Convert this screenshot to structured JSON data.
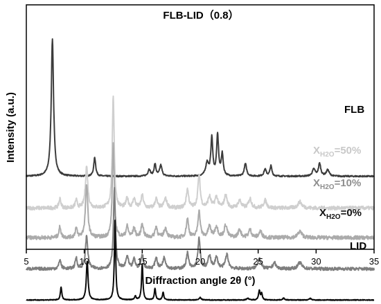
{
  "chart_data": {
    "type": "line",
    "title": "FLB-LID（0.8）",
    "xlabel": "Diffraction angle 2θ (°)",
    "ylabel": "Intensity (a.u.)",
    "xlim": [
      5,
      35
    ],
    "xticks": [
      5,
      10,
      15,
      20,
      25,
      30,
      35
    ],
    "yticks_visible": false,
    "grid": false,
    "legend": "inline labels at right",
    "series": [
      {
        "name": "FLB",
        "label_parts": [
          "FLB",
          "",
          ""
        ],
        "color": "#3c3c3c",
        "baseline": 0.92,
        "noise": 0.022,
        "peaks": [
          [
            7.25,
            4.4,
            0.12
          ],
          [
            10.9,
            0.6,
            0.1
          ],
          [
            15.6,
            0.22,
            0.12
          ],
          [
            16.1,
            0.38,
            0.1
          ],
          [
            16.6,
            0.35,
            0.12
          ],
          [
            20.6,
            0.42,
            0.15
          ],
          [
            21.0,
            1.2,
            0.1
          ],
          [
            21.5,
            1.3,
            0.1
          ],
          [
            21.9,
            0.7,
            0.1
          ],
          [
            23.9,
            0.4,
            0.12
          ],
          [
            25.6,
            0.22,
            0.12
          ],
          [
            26.1,
            0.33,
            0.1
          ],
          [
            29.8,
            0.22,
            0.15
          ],
          [
            30.3,
            0.4,
            0.12
          ],
          [
            31.0,
            0.2,
            0.15
          ]
        ]
      },
      {
        "name": "XH2O=50%",
        "label_parts": [
          "X",
          "H2O",
          "=50%"
        ],
        "color": "#cfcfcf",
        "baseline": -0.1,
        "noise": 0.06,
        "peaks": [
          [
            7.9,
            0.3,
            0.1
          ],
          [
            9.3,
            0.25,
            0.1
          ],
          [
            10.2,
            1.35,
            0.12
          ],
          [
            12.5,
            3.6,
            0.1
          ],
          [
            13.7,
            0.3,
            0.12
          ],
          [
            14.3,
            0.3,
            0.12
          ],
          [
            15.0,
            0.4,
            0.12
          ],
          [
            16.2,
            0.3,
            0.12
          ],
          [
            17.0,
            0.3,
            0.15
          ],
          [
            18.9,
            0.6,
            0.12
          ],
          [
            19.9,
            1.05,
            0.12
          ],
          [
            20.8,
            0.35,
            0.15
          ],
          [
            21.4,
            0.35,
            0.15
          ],
          [
            22.2,
            0.4,
            0.15
          ],
          [
            23.4,
            0.25,
            0.15
          ],
          [
            24.3,
            0.3,
            0.15
          ],
          [
            25.6,
            0.25,
            0.15
          ],
          [
            28.6,
            0.2,
            0.2
          ]
        ]
      },
      {
        "name": "XH2O=10%",
        "label_parts": [
          "X",
          "H2O",
          "=10%"
        ],
        "color": "#ababab",
        "baseline": -1.05,
        "noise": 0.06,
        "peaks": [
          [
            7.9,
            0.35,
            0.1
          ],
          [
            9.3,
            0.3,
            0.1
          ],
          [
            10.2,
            1.7,
            0.12
          ],
          [
            12.5,
            3.0,
            0.1
          ],
          [
            13.7,
            0.35,
            0.12
          ],
          [
            14.3,
            0.3,
            0.12
          ],
          [
            15.0,
            0.45,
            0.12
          ],
          [
            16.2,
            0.35,
            0.12
          ],
          [
            17.0,
            0.3,
            0.15
          ],
          [
            18.9,
            0.6,
            0.12
          ],
          [
            19.9,
            0.85,
            0.12
          ],
          [
            20.8,
            0.35,
            0.15
          ],
          [
            21.4,
            0.35,
            0.15
          ],
          [
            22.2,
            0.4,
            0.15
          ],
          [
            23.4,
            0.25,
            0.15
          ],
          [
            24.3,
            0.25,
            0.15
          ],
          [
            25.2,
            0.2,
            0.15
          ],
          [
            28.6,
            0.2,
            0.2
          ]
        ]
      },
      {
        "name": "XH2O=0%",
        "label_parts": [
          "X",
          "H2O",
          "=0%"
        ],
        "color": "#7e7e7e",
        "baseline": -2.05,
        "noise": 0.05,
        "peaks": [
          [
            7.9,
            0.3,
            0.1
          ],
          [
            9.3,
            0.35,
            0.1
          ],
          [
            10.2,
            1.05,
            0.12
          ],
          [
            12.6,
            2.6,
            0.1
          ],
          [
            13.7,
            0.4,
            0.12
          ],
          [
            14.3,
            0.3,
            0.12
          ],
          [
            15.0,
            0.45,
            0.12
          ],
          [
            16.2,
            0.35,
            0.12
          ],
          [
            16.9,
            0.35,
            0.15
          ],
          [
            18.9,
            0.5,
            0.12
          ],
          [
            19.9,
            0.95,
            0.12
          ],
          [
            20.8,
            0.4,
            0.15
          ],
          [
            21.4,
            0.35,
            0.15
          ],
          [
            22.3,
            0.45,
            0.15
          ],
          [
            25.1,
            0.35,
            0.15
          ],
          [
            26.4,
            0.2,
            0.15
          ],
          [
            28.6,
            0.2,
            0.2
          ]
        ]
      },
      {
        "name": "LID",
        "label_parts": [
          "LID",
          "",
          ""
        ],
        "color": "#0a0a0a",
        "baseline": -3.05,
        "noise": 0.012,
        "peaks": [
          [
            8.0,
            0.42,
            0.07
          ],
          [
            10.25,
            1.25,
            0.09
          ],
          [
            12.65,
            2.55,
            0.07
          ],
          [
            15.0,
            1.15,
            0.07
          ],
          [
            16.1,
            0.36,
            0.07
          ],
          [
            16.8,
            0.25,
            0.07
          ],
          [
            14.4,
            0.12,
            0.08
          ],
          [
            20.0,
            0.08,
            0.1
          ],
          [
            25.1,
            0.3,
            0.08
          ],
          [
            25.3,
            0.2,
            0.07
          ],
          [
            24.1,
            0.06,
            0.1
          ],
          [
            27.2,
            0.06,
            0.1
          ],
          [
            29.5,
            0.05,
            0.1
          ]
        ]
      }
    ]
  }
}
